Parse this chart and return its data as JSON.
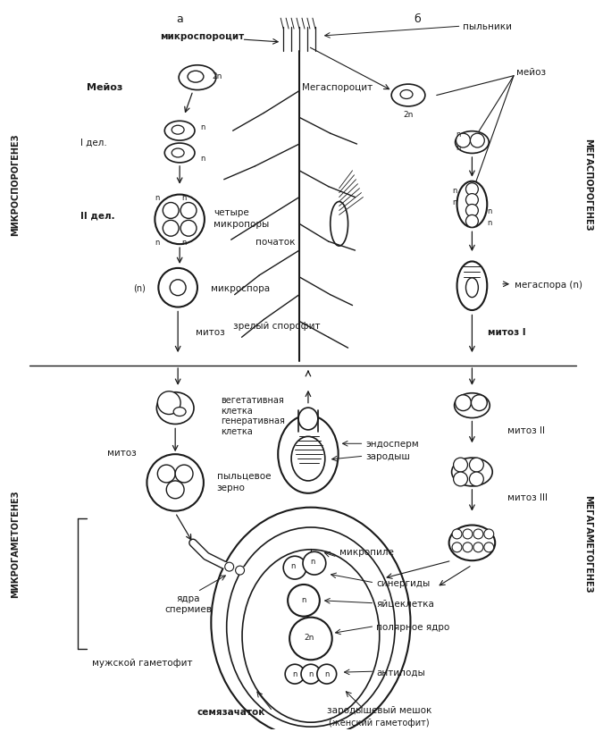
{
  "title_a": "а",
  "title_b": "б",
  "label_mikrosporo": "микроспороцит",
  "label_pylniki": "пыльники",
  "label_mejoz_left": "Мейоз",
  "label_mejoz_right": "мейоз",
  "label_2n_left": "2n",
  "label_2n_right": "2n",
  "label_I_del": "I дел.",
  "label_n": "n",
  "label_II_del": "II дел.",
  "label_chetyre": "четыре",
  "label_mikropory": "микропоры",
  "label_mikrospora": "микроспора",
  "label_mitoz": "митоз",
  "label_mitoz_I": "митоз I",
  "label_mitoz_II": "митоз II",
  "label_mitoz_III": "митоз III",
  "label_vegeta": "вегетативная",
  "label_kletka": "клетка",
  "label_genera": "генеративная",
  "label_kletka2": "клетка",
  "label_pylzerno": "пыльцевое",
  "label_zerno": "зерно",
  "label_yadra": "ядра",
  "label_spermi": "спермиев",
  "label_muzhskoy": "мужской гаметофит",
  "label_megasporo": "Мегаспороцит",
  "label_pochatok": "початок",
  "label_zrsporo": "зрелый спорофит",
  "label_endosperm": "эндосперм",
  "label_zarodysh": "зародыш",
  "label_mikropile": "микропиле",
  "label_megaspora": "мегаспора (n)",
  "label_sinergidy": "синергиды",
  "label_yajcekl": "яйцеклетка",
  "label_polyarnoe": "полярное ядро",
  "label_antipody": "антиподы",
  "label_semyazach": "семязачаток",
  "label_zarodysh_meshok": "зародышевый мешок",
  "label_zhenskiy_gameto": "(женский гаметофит)",
  "label_mikrogameto": "МИКРОГАМЕТОГЕНЕЗ",
  "label_mikrosporogen": "МИКРОСПОРОГЕНЕЗ",
  "label_megasporogen": "МЕГАСПОРОГЕНЕЗ",
  "label_megagameto": "МЕГАГАМЕТОГЕНЕЗ",
  "bg_color": "#ffffff",
  "line_color": "#1a1a1a",
  "text_color": "#1a1a1a"
}
